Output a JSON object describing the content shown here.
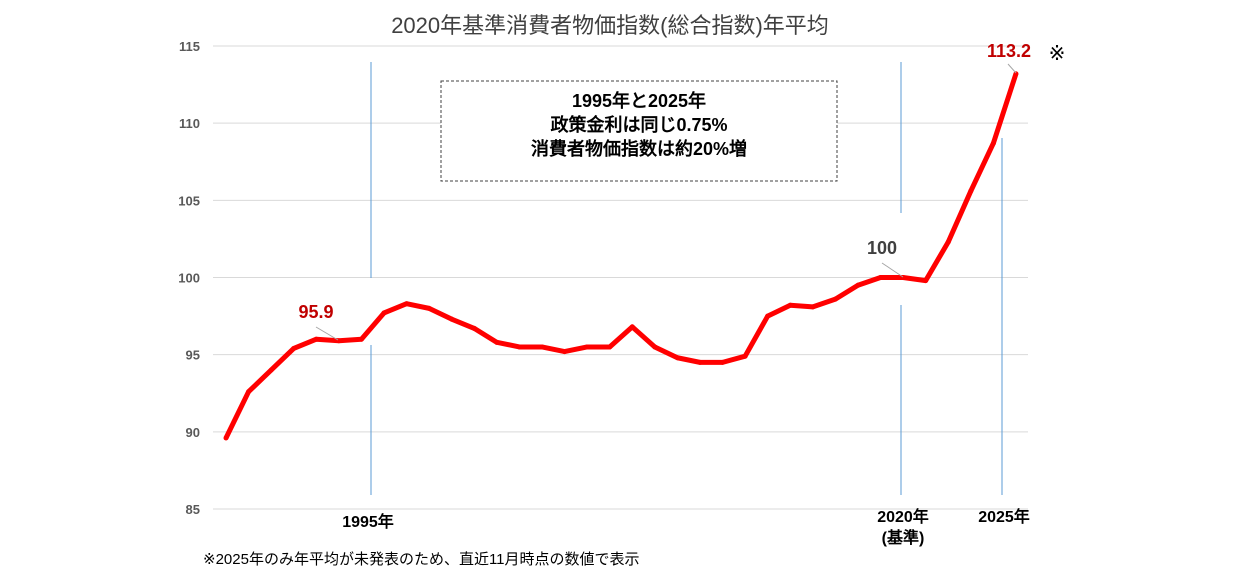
{
  "chart_data": {
    "type": "line",
    "title": "2020年基準消費者物価指数(総合指数)年平均",
    "x": [
      1990,
      1991,
      1992,
      1993,
      1994,
      1995,
      1996,
      1997,
      1998,
      1999,
      2000,
      2001,
      2002,
      2003,
      2004,
      2005,
      2006,
      2007,
      2008,
      2009,
      2010,
      2011,
      2012,
      2013,
      2014,
      2015,
      2016,
      2017,
      2018,
      2019,
      2020,
      2021,
      2022,
      2023,
      2024,
      2025
    ],
    "series": [
      {
        "name": "消費者物価指数",
        "color": "#ff0000",
        "values": [
          89.6,
          92.6,
          94.0,
          95.4,
          96.0,
          95.9,
          96.0,
          97.7,
          98.3,
          98.0,
          97.3,
          96.7,
          95.8,
          95.5,
          95.5,
          95.2,
          95.5,
          95.5,
          96.8,
          95.5,
          94.8,
          94.5,
          94.5,
          94.9,
          97.5,
          98.2,
          98.1,
          98.6,
          99.5,
          100.0,
          100.0,
          99.8,
          102.3,
          105.6,
          108.7,
          113.2
        ]
      }
    ],
    "ylim": [
      85,
      115
    ],
    "yticks": [
      "85",
      "90",
      "95",
      "100",
      "105",
      "110",
      "115"
    ],
    "grid": true,
    "xlabels": {
      "y1995": "1995年",
      "y2020": "2020年",
      "y2020_sub": "(基準)",
      "y2025": "2025年"
    },
    "data_labels": {
      "v1995": "95.9",
      "v2020": "100",
      "v2025": "113.2",
      "mark": "※"
    },
    "annotation": [
      "1995年と2025年",
      "政策金利は同じ0.75%",
      "消費者物価指数は約20%増"
    ],
    "footnote": "※2025年のみ年平均が未発表のため、直近11月時点の数値で表示"
  }
}
